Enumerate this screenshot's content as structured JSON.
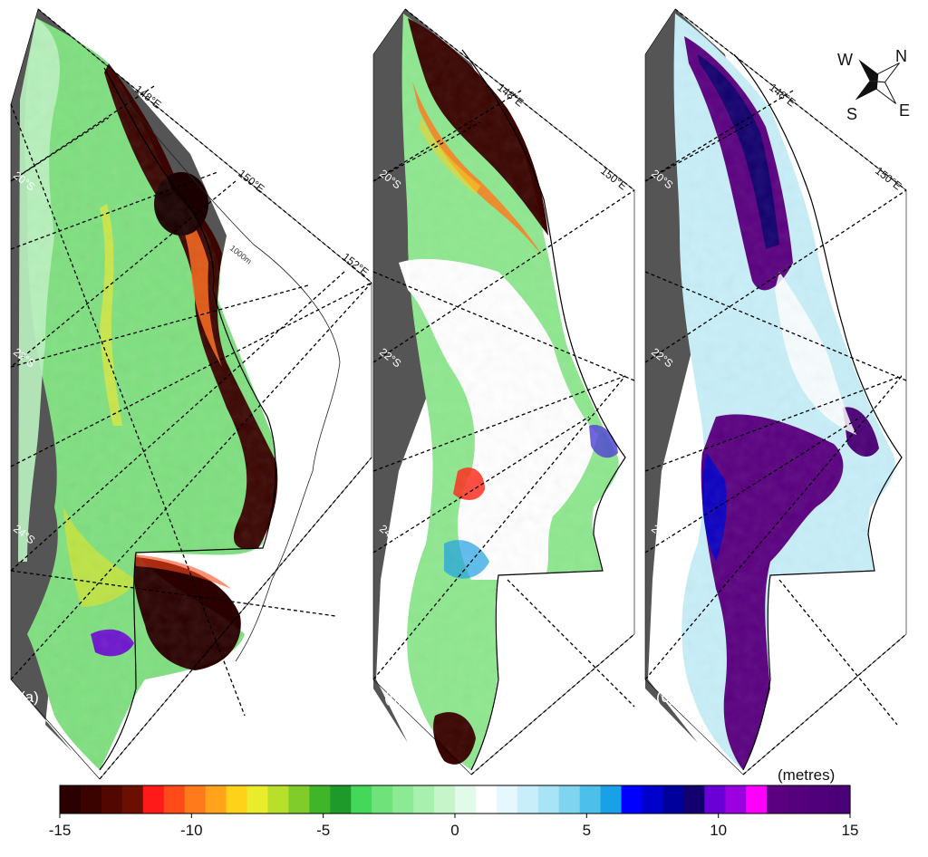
{
  "panels": [
    {
      "label": "(a)",
      "lat_labels": [
        "20°S",
        "22°S",
        "24°S"
      ],
      "lon_labels": [
        "148°E",
        "150°E",
        "152°E"
      ],
      "contour_label": "1000m",
      "scheme": "negative"
    },
    {
      "label": "(b)",
      "lat_labels": [
        "20°S",
        "22°S",
        "24°S"
      ],
      "lon_labels": [
        "148°E",
        "150°E"
      ],
      "scheme": "mixed"
    },
    {
      "label": "(c)",
      "lat_labels": [
        "20°S",
        "22°S",
        "24°S"
      ],
      "lon_labels": [
        "148°E",
        "150°E"
      ],
      "scheme": "positive"
    }
  ],
  "compass": {
    "n": "N",
    "e": "E",
    "s": "S",
    "w": "W"
  },
  "colorbar": {
    "unit": "(metres)",
    "ticks": [
      "-15",
      "-10",
      "-5",
      "0",
      "5",
      "10",
      "15"
    ],
    "range": [
      -15,
      15
    ],
    "colors": [
      "#2a0000",
      "#3a0300",
      "#520700",
      "#6b0f00",
      "#ff1a1a",
      "#ff4a1a",
      "#ff7a1a",
      "#ffa41a",
      "#ffd21a",
      "#e8ec2a",
      "#b8e02a",
      "#7fcc2a",
      "#3fb52a",
      "#1e9a2a",
      "#43d85a",
      "#6fe37a",
      "#8cea94",
      "#a8f0ae",
      "#c5f5c8",
      "#e2faea",
      "#ffffff",
      "#e6f8fd",
      "#c8eff9",
      "#a8e4f5",
      "#7fd5ef",
      "#4cc0ea",
      "#1aa0e6",
      "#0000ff",
      "#0000cc",
      "#00009c",
      "#12006e",
      "#6b00d6",
      "#9a00e0",
      "#ff00ff",
      "#5a0080",
      "#55007d",
      "#50007a",
      "#4c0077"
    ]
  },
  "colors": {
    "land": "#555555",
    "frame": "#000000"
  }
}
